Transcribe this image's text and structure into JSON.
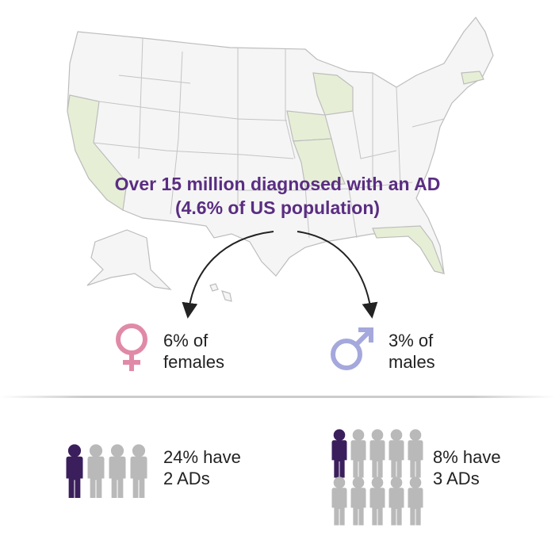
{
  "title": {
    "line1": "Over 15 million diagnosed with an AD",
    "line2": "(4.6% of US population)"
  },
  "gender": [
    {
      "line1": "6% of",
      "line2": "females"
    },
    {
      "line1": "3% of",
      "line2": "males"
    }
  ],
  "multiple": [
    {
      "line1": "24% have",
      "line2": "2 ADs"
    },
    {
      "line1": "8% have",
      "line2": "3 ADs"
    }
  ]
}
